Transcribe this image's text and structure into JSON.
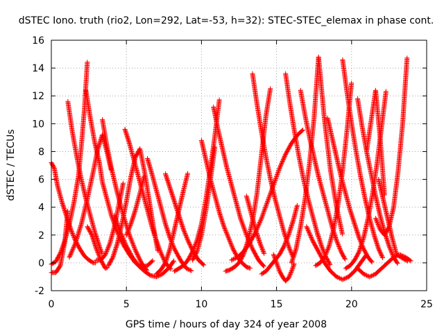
{
  "chart_data": {
    "type": "scatter",
    "title": "dSTEC Iono. truth (rio2, Lon=292, Lat=-53, h=32): STEC-STEC_elemax in phase cont.",
    "xlabel": "GPS time / hours of day 324 of year 2008",
    "ylabel": "dSTEC  / TECUs",
    "xlim": [
      0,
      25
    ],
    "ylim": [
      -2,
      16
    ],
    "x_ticks": [
      "0",
      "5",
      "10",
      "15",
      "20",
      "25"
    ],
    "y_ticks": [
      "-2",
      "0",
      "2",
      "4",
      "6",
      "8",
      "10",
      "12",
      "14",
      "16"
    ],
    "grid": true,
    "marker": "+",
    "color": "#ff0000",
    "series": [
      {
        "x": [
          0.0,
          0.3,
          0.6,
          0.9,
          1.2,
          1.5,
          1.8,
          2.0,
          2.2,
          2.4
        ],
        "y": [
          -0.1,
          0.1,
          0.7,
          1.6,
          2.8,
          4.3,
          6.2,
          8.4,
          11.0,
          14.5
        ]
      },
      {
        "x": [
          0.0,
          0.2,
          0.4,
          0.7,
          1.0,
          1.3,
          1.6,
          1.9,
          2.2,
          2.5,
          2.8,
          3.0
        ],
        "y": [
          7.2,
          6.8,
          5.6,
          4.4,
          3.4,
          2.4,
          1.6,
          1.0,
          0.5,
          0.2,
          0.0,
          0.0
        ]
      },
      {
        "x": [
          0.0,
          0.3,
          0.6,
          0.9,
          1.1
        ],
        "y": [
          -0.7,
          -0.7,
          -0.2,
          1.5,
          3.8
        ]
      },
      {
        "x": [
          1.1,
          1.4,
          1.7,
          2.0,
          2.3,
          2.6,
          2.9,
          3.2,
          3.4
        ],
        "y": [
          11.6,
          9.4,
          7.6,
          6.0,
          4.6,
          3.4,
          2.2,
          1.2,
          0.6
        ]
      },
      {
        "x": [
          2.3,
          2.6,
          2.9,
          3.2,
          3.4,
          3.7,
          4.0,
          4.4,
          4.8,
          5.2,
          5.6,
          6.0,
          6.4,
          6.8
        ],
        "y": [
          12.4,
          10.4,
          8.6,
          7.2,
          5.8,
          4.6,
          3.4,
          2.2,
          1.3,
          0.6,
          0.0,
          -0.3,
          -0.2,
          0.2
        ]
      },
      {
        "x": [
          1.2,
          1.6,
          2.0,
          2.4,
          2.8,
          3.1,
          3.4,
          3.7,
          4.0
        ],
        "y": [
          0.4,
          1.4,
          2.8,
          4.6,
          6.6,
          8.2,
          9.2,
          8.0,
          6.6
        ]
      },
      {
        "x": [
          3.4,
          3.7,
          4.0,
          4.4,
          4.8,
          5.2,
          5.6,
          6.0,
          6.4
        ],
        "y": [
          10.3,
          8.4,
          6.8,
          5.0,
          3.4,
          2.0,
          0.9,
          0.0,
          -0.6
        ]
      },
      {
        "x": [
          2.4,
          2.7,
          3.0,
          3.3,
          3.6,
          3.8
        ],
        "y": [
          2.6,
          2.0,
          1.0,
          0.2,
          -0.4,
          -0.3
        ]
      },
      {
        "x": [
          3.0,
          3.3,
          3.6,
          3.9,
          4.2,
          4.5,
          4.8
        ],
        "y": [
          0.2,
          0.2,
          0.6,
          1.4,
          2.6,
          4.2,
          5.8
        ]
      },
      {
        "x": [
          3.8,
          4.1,
          4.4,
          4.7,
          5.0,
          5.3,
          5.6,
          5.9,
          6.2,
          6.5,
          6.8,
          7.1
        ],
        "y": [
          -0.2,
          0.4,
          1.4,
          2.8,
          4.4,
          6.2,
          7.6,
          8.2,
          6.6,
          4.6,
          2.6,
          0.8
        ]
      },
      {
        "x": [
          4.9,
          5.2,
          5.5,
          5.8,
          6.1,
          6.4,
          6.7,
          7.0,
          7.3,
          7.6,
          8.0
        ],
        "y": [
          9.6,
          8.6,
          7.4,
          6.2,
          5.0,
          3.8,
          2.6,
          1.6,
          0.7,
          0.0,
          -0.5
        ]
      },
      {
        "x": [
          4.2,
          4.6,
          5.0,
          5.4,
          5.8,
          6.2,
          6.6,
          7.0,
          7.4,
          7.8,
          8.2
        ],
        "y": [
          3.4,
          2.2,
          1.2,
          0.4,
          -0.2,
          -0.6,
          -0.9,
          -1.0,
          -0.8,
          -0.4,
          0.2
        ]
      },
      {
        "x": [
          5.0,
          5.3,
          5.6,
          5.9,
          6.2
        ],
        "y": [
          2.0,
          2.8,
          3.8,
          5.0,
          6.3
        ]
      },
      {
        "x": [
          6.4,
          6.7,
          7.0,
          7.3,
          7.6,
          7.9,
          8.2,
          8.6,
          9.0,
          9.4
        ],
        "y": [
          7.5,
          6.4,
          5.2,
          4.0,
          2.8,
          1.8,
          1.0,
          0.2,
          -0.4,
          -0.6
        ]
      },
      {
        "x": [
          7.6,
          7.9,
          8.2,
          8.5,
          8.8,
          9.1,
          9.4,
          9.8,
          10.2
        ],
        "y": [
          6.4,
          5.4,
          4.4,
          3.4,
          2.4,
          1.6,
          0.9,
          0.2,
          -0.2
        ]
      },
      {
        "x": [
          7.0,
          7.3,
          7.6,
          7.9,
          8.2,
          8.5,
          8.8,
          9.1
        ],
        "y": [
          -0.8,
          -0.5,
          0.0,
          1.0,
          2.4,
          3.8,
          5.2,
          6.5
        ]
      },
      {
        "x": [
          8.2,
          8.5,
          8.8,
          9.1,
          9.4,
          9.7,
          10.0,
          10.3,
          10.6,
          10.9,
          11.2
        ],
        "y": [
          -0.6,
          -0.4,
          -0.2,
          0.2,
          0.8,
          1.6,
          2.8,
          4.6,
          6.8,
          9.2,
          11.8
        ]
      },
      {
        "x": [
          10.0,
          10.3,
          10.6,
          10.9,
          11.2,
          11.5,
          11.8,
          12.1,
          12.4,
          12.7,
          13.0,
          13.3
        ],
        "y": [
          8.8,
          7.4,
          6.0,
          4.8,
          3.6,
          2.6,
          1.8,
          1.0,
          0.4,
          0.0,
          -0.3,
          -0.4
        ]
      },
      {
        "x": [
          10.8,
          11.1,
          11.4,
          11.7,
          12.0,
          12.3,
          12.6,
          13.0,
          13.4,
          13.8,
          14.2
        ],
        "y": [
          11.2,
          9.6,
          8.2,
          6.8,
          5.6,
          4.4,
          3.2,
          2.0,
          1.0,
          0.2,
          -0.3
        ]
      },
      {
        "x": [
          9.4,
          9.7,
          10.0,
          10.3,
          10.6,
          10.9
        ],
        "y": [
          0.2,
          0.8,
          2.0,
          3.8,
          6.0,
          8.4
        ]
      },
      {
        "x": [
          11.6,
          11.9,
          12.2,
          12.5,
          12.8,
          13.1,
          13.4,
          13.7,
          14.0,
          14.3,
          14.6
        ],
        "y": [
          -0.6,
          -0.5,
          -0.3,
          0.0,
          0.6,
          1.6,
          3.0,
          5.0,
          7.8,
          10.6,
          12.6
        ]
      },
      {
        "x": [
          13.4,
          13.7,
          14.0,
          14.3,
          14.6,
          14.9,
          15.2,
          15.5,
          15.8,
          16.1
        ],
        "y": [
          13.6,
          11.4,
          9.4,
          7.6,
          6.0,
          4.6,
          3.4,
          2.2,
          1.2,
          0.4
        ]
      },
      {
        "x": [
          12.0,
          12.4,
          12.8,
          13.2,
          13.6,
          14.0,
          14.4,
          14.8,
          15.2,
          15.6,
          16.0,
          16.4,
          16.8
        ],
        "y": [
          0.2,
          0.4,
          0.8,
          1.4,
          2.2,
          3.2,
          4.4,
          5.6,
          6.8,
          7.8,
          8.6,
          9.2,
          9.6
        ]
      },
      {
        "x": [
          13.0,
          13.3,
          13.6,
          13.9,
          14.2
        ],
        "y": [
          4.8,
          3.6,
          2.4,
          1.4,
          0.6
        ]
      },
      {
        "x": [
          14.0,
          14.3,
          14.6,
          14.9,
          15.2,
          15.5,
          15.8,
          16.1,
          16.4
        ],
        "y": [
          -0.8,
          -0.6,
          -0.2,
          0.2,
          0.6,
          1.2,
          2.0,
          3.0,
          4.2
        ]
      },
      {
        "x": [
          14.8,
          15.0,
          15.2,
          15.4,
          15.6,
          15.8,
          16.0,
          16.2
        ],
        "y": [
          0.6,
          0.0,
          -0.6,
          -1.0,
          -1.3,
          -1.1,
          -0.6,
          0.0
        ]
      },
      {
        "x": [
          15.6,
          15.9,
          16.2,
          16.5,
          16.8,
          17.1,
          17.4,
          17.7,
          18.0,
          18.3,
          18.6
        ],
        "y": [
          13.6,
          11.4,
          9.4,
          7.6,
          6.0,
          4.6,
          3.4,
          2.2,
          1.2,
          0.4,
          -0.2
        ]
      },
      {
        "x": [
          16.0,
          16.3,
          16.6,
          16.9,
          17.2,
          17.5,
          17.8,
          18.2,
          18.6,
          19.0,
          19.4
        ],
        "y": [
          0.0,
          1.0,
          2.6,
          4.6,
          7.2,
          10.4,
          14.8,
          10.2,
          6.6,
          4.0,
          2.0
        ]
      },
      {
        "x": [
          16.6,
          16.9,
          17.2,
          17.5,
          17.8,
          18.1,
          18.4,
          18.7,
          19.0,
          19.3,
          19.6
        ],
        "y": [
          12.4,
          10.6,
          9.0,
          7.6,
          6.2,
          5.0,
          3.8,
          2.6,
          1.6,
          0.8,
          0.2
        ]
      },
      {
        "x": [
          17.0,
          17.4,
          17.8,
          18.2,
          18.6,
          19.0,
          19.4,
          19.8,
          20.2,
          20.6,
          21.0
        ],
        "y": [
          2.6,
          1.6,
          0.8,
          0.0,
          -0.6,
          -1.0,
          -1.2,
          -1.0,
          -0.6,
          0.0,
          0.6
        ]
      },
      {
        "x": [
          17.6,
          17.9,
          18.2,
          18.5,
          18.8,
          19.1,
          19.4,
          19.7,
          20.0
        ],
        "y": [
          -0.2,
          0.0,
          0.4,
          1.2,
          2.4,
          4.2,
          6.6,
          9.6,
          13.0
        ]
      },
      {
        "x": [
          18.4,
          18.7,
          19.0,
          19.3,
          19.6,
          19.9,
          20.2,
          20.5,
          20.8,
          21.1,
          21.4
        ],
        "y": [
          10.4,
          9.0,
          7.6,
          6.2,
          5.0,
          3.8,
          2.8,
          1.8,
          1.0,
          0.4,
          0.0
        ]
      },
      {
        "x": [
          19.4,
          19.7,
          20.0,
          20.3,
          20.6,
          20.9,
          21.2,
          21.5,
          21.8,
          22.1
        ],
        "y": [
          14.6,
          12.2,
          10.0,
          8.0,
          6.2,
          4.6,
          3.2,
          2.0,
          1.0,
          0.3
        ]
      },
      {
        "x": [
          19.6,
          19.9,
          20.2,
          20.5,
          20.8,
          21.1,
          21.4,
          21.7,
          22.0,
          22.3
        ],
        "y": [
          -0.4,
          -0.2,
          0.2,
          0.8,
          1.8,
          3.2,
          5.0,
          7.2,
          9.8,
          12.4
        ]
      },
      {
        "x": [
          20.4,
          20.7,
          21.0,
          21.3,
          21.6,
          21.9,
          22.2,
          22.5,
          22.8,
          23.1
        ],
        "y": [
          11.8,
          9.8,
          8.0,
          6.4,
          4.8,
          3.4,
          2.2,
          1.2,
          0.4,
          -0.1
        ]
      },
      {
        "x": [
          20.4,
          20.8,
          21.2,
          21.6,
          22.0,
          22.4,
          22.8,
          23.2,
          23.6,
          24.0
        ],
        "y": [
          -0.4,
          -0.8,
          -1.0,
          -0.8,
          -0.4,
          0.0,
          0.4,
          0.6,
          0.4,
          0.1
        ]
      },
      {
        "x": [
          21.8,
          22.1,
          22.4,
          22.7,
          23.0,
          23.3,
          23.6,
          23.8
        ],
        "y": [
          6.0,
          4.6,
          3.2,
          1.8,
          0.6,
          0.4,
          0.2,
          0.1
        ]
      },
      {
        "x": [
          21.6,
          21.9,
          22.2,
          22.5,
          22.8,
          23.1,
          23.4,
          23.7
        ],
        "y": [
          3.2,
          2.4,
          2.0,
          2.6,
          4.0,
          6.6,
          10.0,
          14.8
        ]
      },
      {
        "x": [
          21.0,
          21.3,
          21.6,
          21.9,
          22.2
        ],
        "y": [
          8.0,
          10.2,
          12.4,
          9.0,
          4.8
        ]
      }
    ]
  }
}
